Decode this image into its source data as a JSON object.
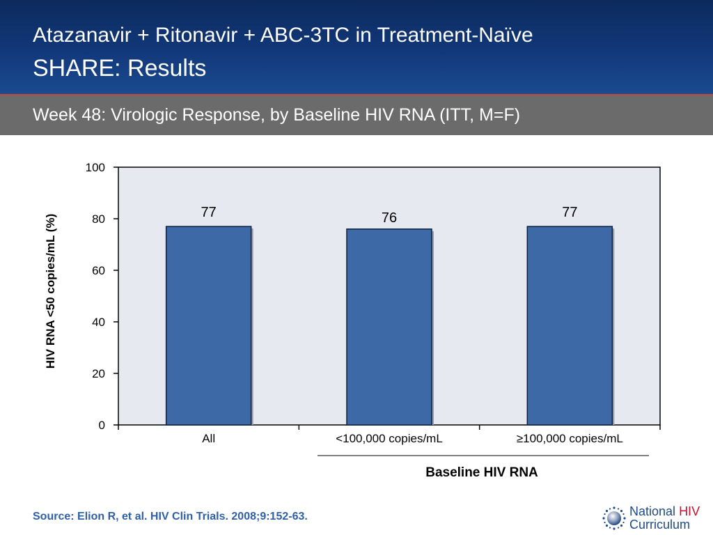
{
  "header": {
    "title_line1": "Atazanavir + Ritonavir + ABC-3TC in Treatment-Naïve",
    "title_line2": "SHARE: Results",
    "subtitle": "Week 48: Virologic Response, by Baseline HIV RNA  (ITT, M=F)"
  },
  "colors": {
    "header_blue": "#12387a",
    "subbar_gray": "#6b6b6b",
    "bar_blue": "#3d6aa6",
    "plot_bg": "#e6e9ef",
    "source_blue": "#2f5fa7",
    "logo_red": "#c8102e"
  },
  "chart_data": {
    "type": "bar",
    "categories": [
      "All",
      "<100,000 copies/mL",
      "≥100,000 copies/mL"
    ],
    "values": [
      77,
      76,
      77
    ],
    "data_labels": [
      "77",
      "76",
      "77"
    ],
    "ylabel": "HIV RNA <50 copies/mL (%)",
    "xlabel": "Baseline HIV RNA",
    "ylim": [
      0,
      100
    ],
    "yticks": [
      0,
      20,
      40,
      60,
      80,
      100
    ],
    "grid": false,
    "legend": "none"
  },
  "source": "Source: Elion R, et al. HIV Clin Trials. 2008;9:152-63.",
  "logo": {
    "line1_part1": "National",
    "line1_part2": "HIV",
    "line2": "Curriculum",
    "icon": "globe-dots-icon"
  }
}
